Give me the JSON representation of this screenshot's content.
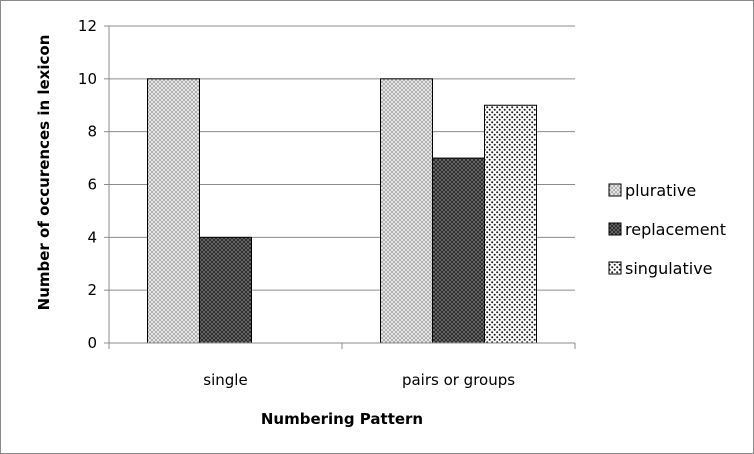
{
  "chart_data": {
    "type": "bar",
    "categories": [
      "single",
      "pairs or groups"
    ],
    "series": [
      {
        "name": "plurative",
        "values": [
          10,
          10
        ],
        "pattern": "dots-light",
        "color": "#d9d9d9"
      },
      {
        "name": "replacement",
        "values": [
          4,
          7
        ],
        "pattern": "hatch-dark",
        "color": "#3a3a3a"
      },
      {
        "name": "singulative",
        "values": [
          null,
          9
        ],
        "pattern": "dots-sparse",
        "color": "#ffffff"
      }
    ],
    "xlabel": "Numbering Pattern",
    "ylabel": "Number of occurences in lexicon",
    "ylim": [
      0,
      12
    ],
    "yticks": [
      0,
      2,
      4,
      6,
      8,
      10,
      12
    ],
    "grid": true,
    "legend_position": "right"
  }
}
